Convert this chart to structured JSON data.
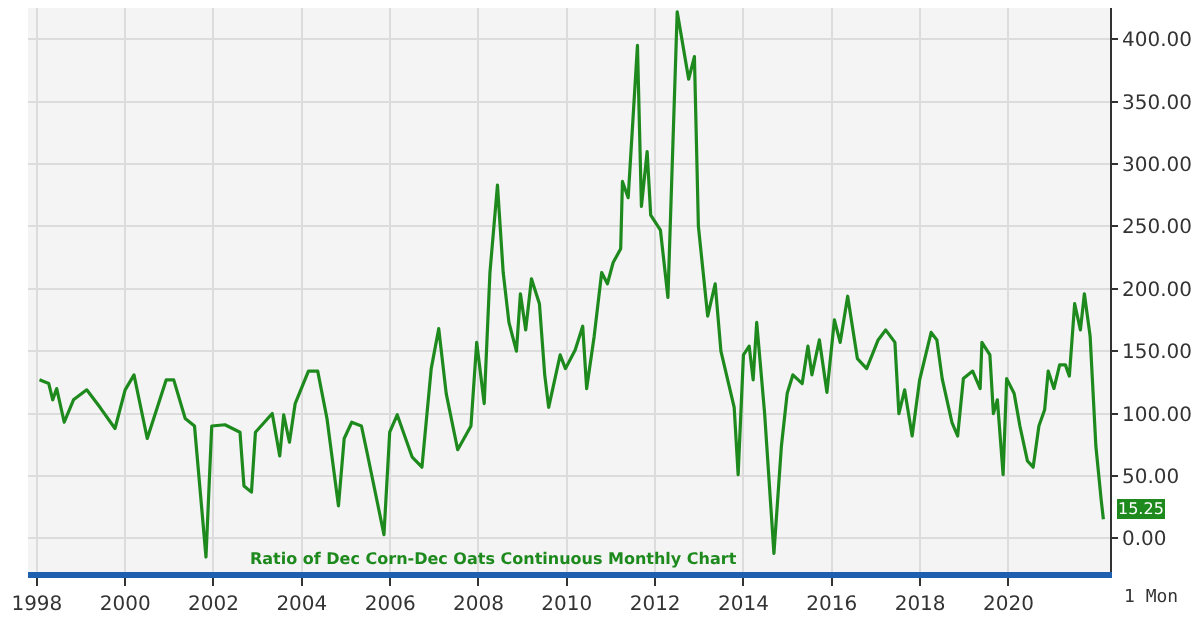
{
  "chart_data": {
    "type": "line",
    "title": "Ratio of Dec Corn-Dec Oats Continuous Monthly Chart",
    "x": [
      1998.06,
      1998.27,
      1998.36,
      1998.45,
      1998.62,
      1998.83,
      1999.13,
      1999.43,
      1999.77,
      2000.0,
      2000.2,
      2000.5,
      2000.93,
      2001.1,
      2001.36,
      2001.57,
      2001.83,
      2001.96,
      2002.26,
      2002.6,
      2002.69,
      2002.86,
      2002.95,
      2003.33,
      2003.5,
      2003.59,
      2003.72,
      2003.85,
      2004.15,
      2004.36,
      2004.57,
      2004.83,
      2004.96,
      2005.13,
      2005.35,
      2005.47,
      2005.86,
      2005.99,
      2006.16,
      2006.5,
      2006.72,
      2006.93,
      2007.1,
      2007.27,
      2007.53,
      2007.83,
      2007.96,
      2008.13,
      2008.26,
      2008.43,
      2008.56,
      2008.69,
      2008.86,
      2008.95,
      2009.07,
      2009.2,
      2009.38,
      2009.5,
      2009.59,
      2009.85,
      2009.97,
      2010.19,
      2010.36,
      2010.45,
      2010.62,
      2010.79,
      2010.92,
      2011.05,
      2011.22,
      2011.26,
      2011.39,
      2011.6,
      2011.69,
      2011.82,
      2011.9,
      2012.12,
      2012.29,
      2012.5,
      2012.76,
      2012.89,
      2012.98,
      2013.19,
      2013.36,
      2013.49,
      2013.79,
      2013.88,
      2014.0,
      2014.13,
      2014.22,
      2014.3,
      2014.48,
      2014.69,
      2014.86,
      2014.99,
      2015.12,
      2015.33,
      2015.46,
      2015.55,
      2015.72,
      2015.89,
      2016.06,
      2016.19,
      2016.36,
      2016.58,
      2016.79,
      2017.05,
      2017.22,
      2017.43,
      2017.52,
      2017.65,
      2017.82,
      2017.99,
      2018.25,
      2018.38,
      2018.5,
      2018.72,
      2018.85,
      2018.98,
      2019.19,
      2019.36,
      2019.4,
      2019.58,
      2019.66,
      2019.75,
      2019.88,
      2019.96,
      2020.13,
      2020.26,
      2020.43,
      2020.56,
      2020.69,
      2020.82,
      2020.9,
      2021.03,
      2021.16,
      2021.29,
      2021.38,
      2021.5,
      2021.63,
      2021.72,
      2021.85,
      2021.98,
      2022.1,
      2022.15
    ],
    "series": [
      {
        "color": "#1e8a1e",
        "values": [
          127,
          124,
          111,
          120,
          93,
          111,
          119,
          105,
          88,
          119,
          131,
          80,
          127,
          127,
          96,
          90,
          -15,
          90,
          91,
          85,
          42,
          37,
          85,
          100,
          66,
          99,
          77,
          108,
          134,
          134,
          96,
          26,
          80,
          93,
          90,
          70,
          3,
          85,
          99,
          65,
          57,
          136,
          168,
          116,
          71,
          90,
          157,
          108,
          213,
          283,
          213,
          173,
          150,
          196,
          167,
          208,
          188,
          131,
          105,
          147,
          136,
          151,
          170,
          120,
          162,
          213,
          204,
          221,
          232,
          286,
          273,
          395,
          266,
          310,
          259,
          247,
          193,
          422,
          368,
          386,
          250,
          178,
          204,
          150,
          105,
          51,
          147,
          154,
          127,
          173,
          100,
          -12,
          74,
          116,
          131,
          124,
          154,
          131,
          159,
          117,
          175,
          157,
          194,
          144,
          136,
          159,
          167,
          157,
          100,
          119,
          82,
          127,
          165,
          159,
          128,
          93,
          82,
          128,
          134,
          120,
          157,
          147,
          100,
          111,
          51,
          128,
          116,
          90,
          62,
          57,
          90,
          103,
          134,
          120,
          139,
          139,
          130,
          188,
          167,
          196,
          162,
          74,
          31,
          15.25
        ]
      }
    ],
    "xlim": [
      1997.8,
      2022.3
    ],
    "xticks": [
      1998,
      2000,
      2002,
      2004,
      2006,
      2008,
      2010,
      2012,
      2014,
      2016,
      2018,
      2020
    ],
    "ylim": [
      -27,
      425
    ],
    "yticks": [
      {
        "value": 0,
        "label": "0.00"
      },
      {
        "value": 50,
        "label": "50.00"
      },
      {
        "value": 100,
        "label": "100.00"
      },
      {
        "value": 150,
        "label": "150.00"
      },
      {
        "value": 200,
        "label": "200.00"
      },
      {
        "value": 250,
        "label": "250.00"
      },
      {
        "value": 300,
        "label": "300.00"
      },
      {
        "value": 350,
        "label": "350.00"
      },
      {
        "value": 400,
        "label": "400.00"
      }
    ],
    "grid": true,
    "legend": false,
    "marker": "none",
    "line_style": "solid",
    "annotations": [
      {
        "text": "15.25",
        "x": 2022.15,
        "y": 15.25
      },
      "1 Mon"
    ]
  }
}
